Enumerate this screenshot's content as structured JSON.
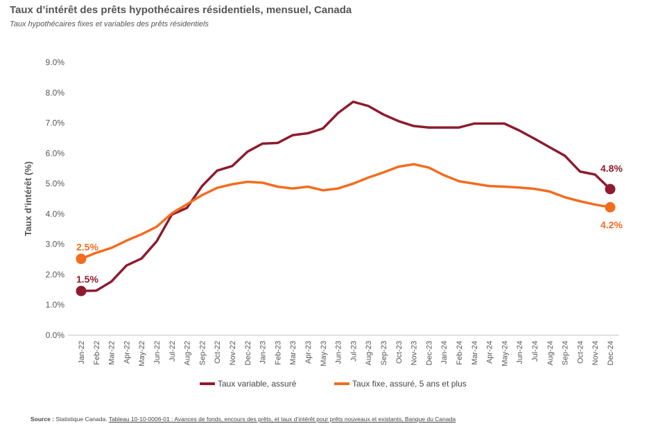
{
  "header": {
    "title": "Taux d’intérêt des prêts hypothécaires résidentiels, mensuel, Canada",
    "subtitle": "Taux hypothécaires fixes et variables des prêts résidentiels"
  },
  "source": {
    "label": "Source :",
    "text": "Statistique Canada.",
    "link": "Tableau 10-10-0006-01 : Avances de fonds, encours des prêts, et taux d’intérêt pour prêts nouveaux et existants, Banque du Canada"
  },
  "chart_data": {
    "type": "line",
    "ylabel": "Taux d’intérêt (%)",
    "ylim": [
      0,
      9
    ],
    "yticks": [
      "0.0%",
      "1.0%",
      "2.0%",
      "3.0%",
      "4.0%",
      "5.0%",
      "6.0%",
      "7.0%",
      "8.0%",
      "9.0%"
    ],
    "grid": false,
    "legend_position": "bottom",
    "categories": [
      "Jan-22",
      "Feb-22",
      "Mar-22",
      "Apr-22",
      "May-22",
      "Jun-22",
      "Jul-22",
      "Aug-22",
      "Sep-22",
      "Oct-22",
      "Nov-22",
      "Dec-22",
      "Jan-23",
      "Feb-23",
      "Mar-23",
      "Apr-23",
      "May-23",
      "Jun-23",
      "Jul-23",
      "Aug-23",
      "Sep-23",
      "Oct-23",
      "Nov-23",
      "Dec-23",
      "Jan-24",
      "Feb-24",
      "Mar-24",
      "Apr-24",
      "May-24",
      "Jun-24",
      "Jul-24",
      "Aug-24",
      "Sep-24",
      "Oct-24",
      "Nov-24",
      "Dec-24"
    ],
    "series": [
      {
        "name": "Taux variable, assuré",
        "color": "#8e1b2e",
        "values": [
          1.46,
          1.47,
          1.77,
          2.3,
          2.53,
          3.1,
          3.98,
          4.2,
          4.92,
          5.43,
          5.58,
          6.05,
          6.32,
          6.34,
          6.6,
          6.66,
          6.82,
          7.33,
          7.7,
          7.56,
          7.28,
          7.06,
          6.9,
          6.85,
          6.85,
          6.85,
          6.98,
          6.98,
          6.98,
          6.75,
          6.48,
          6.2,
          5.92,
          5.4,
          5.3,
          4.82
        ],
        "start_label": "1.5%",
        "end_label": "4.8%"
      },
      {
        "name": "Taux fixe, assuré, 5 ans et plus",
        "color": "#f26c1e",
        "values": [
          2.52,
          2.72,
          2.88,
          3.12,
          3.33,
          3.58,
          4.02,
          4.32,
          4.62,
          4.86,
          4.98,
          5.06,
          5.03,
          4.9,
          4.84,
          4.9,
          4.78,
          4.84,
          5.0,
          5.2,
          5.37,
          5.56,
          5.64,
          5.53,
          5.28,
          5.08,
          5.0,
          4.92,
          4.9,
          4.87,
          4.83,
          4.74,
          4.55,
          4.42,
          4.31,
          4.22
        ],
        "start_label": "2.5%",
        "end_label": "4.2%"
      }
    ]
  }
}
